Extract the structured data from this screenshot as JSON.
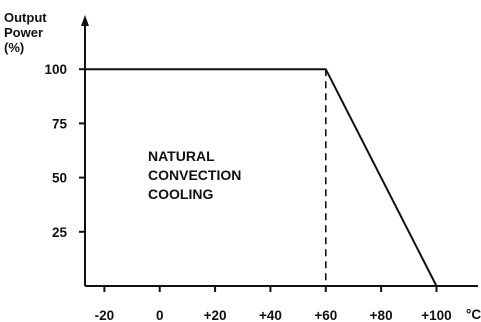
{
  "chart_data": {
    "type": "line",
    "title": "",
    "xlabel": "°C",
    "ylabel_lines": [
      "Output",
      "Power",
      "(%)"
    ],
    "x": [
      -27,
      60,
      100
    ],
    "series": [
      {
        "values": [
          100,
          100,
          0
        ]
      }
    ],
    "marker_line": {
      "x": 60,
      "from_y": 0,
      "to_y": 100,
      "style": "dashed"
    },
    "xticks": [
      -20,
      0,
      20,
      40,
      60,
      80,
      100
    ],
    "xtick_labels": [
      "-20",
      "0",
      "+20",
      "+40",
      "+60",
      "+80",
      "+100"
    ],
    "yticks": [
      25,
      50,
      75,
      100
    ],
    "ytick_labels": [
      "25",
      "50",
      "75",
      "100"
    ],
    "xlim": [
      -27,
      115
    ],
    "ylim": [
      0,
      125
    ],
    "annotation_lines": [
      "NATURAL",
      "CONVECTION",
      "COOLING"
    ],
    "annotation_position": {
      "x": 0,
      "y": 50
    },
    "grid": false,
    "legend": "none",
    "colors": {
      "line": "#111111",
      "axis": "#111111",
      "background": "#ffffff"
    }
  }
}
